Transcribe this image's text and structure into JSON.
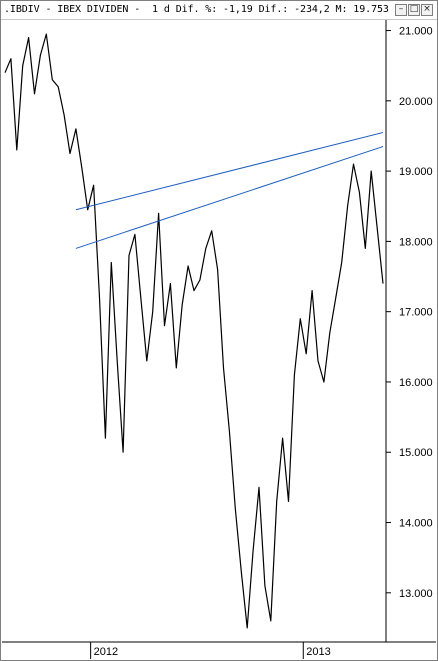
{
  "window": {
    "title": ".IBDIV - IBEX DIVIDEN -  1 d Dif. %: -1,19 Dif.: -234,2 M: 19.753",
    "minimize_label": "–",
    "restore_label": "□",
    "close_label": "×"
  },
  "chart_data": {
    "type": "line",
    "title": "",
    "xlabel": "",
    "ylabel": "",
    "x_tick_labels": [
      "2012",
      "2013"
    ],
    "y_tick_labels": [
      "13.000",
      "14.000",
      "15.000",
      "16.000",
      "17.000",
      "18.000",
      "19.000",
      "20.000",
      "21.000"
    ],
    "y_ticks": [
      13000,
      14000,
      15000,
      16000,
      17000,
      18000,
      19000,
      20000,
      21000
    ],
    "ylim": [
      12300,
      21150
    ],
    "x": [
      "2011-08",
      "2011-08",
      "2011-08",
      "2011-09",
      "2011-09",
      "2011-09",
      "2011-10",
      "2011-10",
      "2011-10",
      "2011-11",
      "2011-11",
      "2011-11",
      "2011-12",
      "2011-12",
      "2011-12",
      "2012-01",
      "2012-01",
      "2012-01",
      "2012-02",
      "2012-02",
      "2012-02",
      "2012-03",
      "2012-03",
      "2012-03",
      "2012-04",
      "2012-04",
      "2012-04",
      "2012-05",
      "2012-05",
      "2012-05",
      "2012-06",
      "2012-06",
      "2012-06",
      "2012-07",
      "2012-07",
      "2012-07",
      "2012-08",
      "2012-08",
      "2012-08",
      "2012-09",
      "2012-09",
      "2012-09",
      "2012-10",
      "2012-10",
      "2012-10",
      "2012-11",
      "2012-11",
      "2012-11",
      "2012-12",
      "2012-12",
      "2012-12",
      "2013-01",
      "2013-01",
      "2013-01",
      "2013-02",
      "2013-02",
      "2013-02",
      "2013-03",
      "2013-03",
      "2013-03",
      "2013-04",
      "2013-04",
      "2013-04",
      "2013-05",
      "2013-05"
    ],
    "series": [
      {
        "color": "#000000",
        "values": [
          20400,
          20600,
          19300,
          20500,
          20900,
          20100,
          20650,
          20950,
          20300,
          20200,
          19800,
          19250,
          19600,
          19050,
          18450,
          18800,
          17200,
          15200,
          17700,
          16300,
          15000,
          17800,
          18100,
          17200,
          16300,
          17000,
          18400,
          16800,
          17400,
          16200,
          17100,
          17650,
          17300,
          17450,
          17900,
          18150,
          17600,
          16200,
          15300,
          14200,
          13300,
          12500,
          13600,
          14500,
          13100,
          12600,
          14300,
          15200,
          14300,
          16100,
          16900,
          16400,
          17300,
          16300,
          16000,
          16700,
          17200,
          17700,
          18500,
          19100,
          18700,
          17900,
          19000,
          18200,
          17400
        ]
      }
    ],
    "trendlines": [
      {
        "color": "#1f5fbf",
        "from": [
          "2011-12",
          18450
        ],
        "to": [
          "2013-05",
          19550
        ]
      },
      {
        "color": "#1f5fbf",
        "from": [
          "2011-12",
          17900
        ],
        "to": [
          "2013-05",
          19350
        ]
      }
    ],
    "grid": false,
    "legend": "none"
  }
}
